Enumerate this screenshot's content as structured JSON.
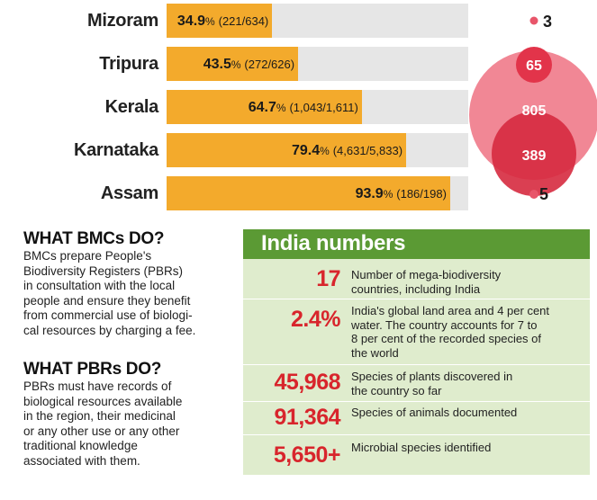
{
  "chart_data": [
    {
      "type": "bar",
      "orientation": "horizontal",
      "categories": [
        "Mizoram",
        "Tripura",
        "Kerala",
        "Karnataka",
        "Assam"
      ],
      "values": [
        34.9,
        43.5,
        64.7,
        79.4,
        93.9
      ],
      "value_suffix": "%",
      "counts": [
        "(221/634)",
        "(272/626)",
        "(1,043/1,611)",
        "(4,631/5,833)",
        "(186/198)"
      ],
      "xlim": [
        0,
        100
      ]
    },
    {
      "type": "bubble",
      "values": [
        3,
        65,
        805,
        389,
        5
      ],
      "colors": [
        "#e8556a",
        "#e2344a",
        "#ee7283",
        "#d62a3f",
        "#e8556a"
      ]
    }
  ],
  "left_text": {
    "bmc_heading": "WHAT BMCs DO?",
    "bmc_lines": [
      "BMCs prepare People's",
      "Biodiversity Registers (PBRs)",
      "in consultation with the local",
      "people and ensure they benefit",
      "from commercial use of biologi-",
      "cal resources by charging a fee."
    ],
    "pbr_heading": "WHAT PBRs DO?",
    "pbr_lines": [
      "PBRs must have records of",
      "biological resources available",
      "in the region, their medicinal",
      "or any other use or any other",
      "traditional knowledge",
      "associated with them."
    ]
  },
  "india_numbers": {
    "title": "India numbers",
    "rows": [
      {
        "value": "17",
        "lines": [
          "Number of mega-biodiversity",
          "countries, including India"
        ]
      },
      {
        "value": "2.4%",
        "lines": [
          "India's global land area and 4 per cent",
          "water. The country accounts for 7 to",
          "8 per cent of the recorded species of",
          "the world"
        ]
      },
      {
        "value": "45,968",
        "lines": [
          "Species of plants discovered in",
          "the country so far"
        ]
      },
      {
        "value": "91,364",
        "lines": [
          "Species of animals documented"
        ]
      },
      {
        "value": "5,650+",
        "lines": [
          "Microbial species identified"
        ]
      }
    ]
  },
  "colors": {
    "bar_fill": "#f3aa2c",
    "bar_track": "#e6e6e6",
    "box_bg": "#dfeccd",
    "box_title_bg": "#5b9a34",
    "number_red": "#d8252c"
  }
}
